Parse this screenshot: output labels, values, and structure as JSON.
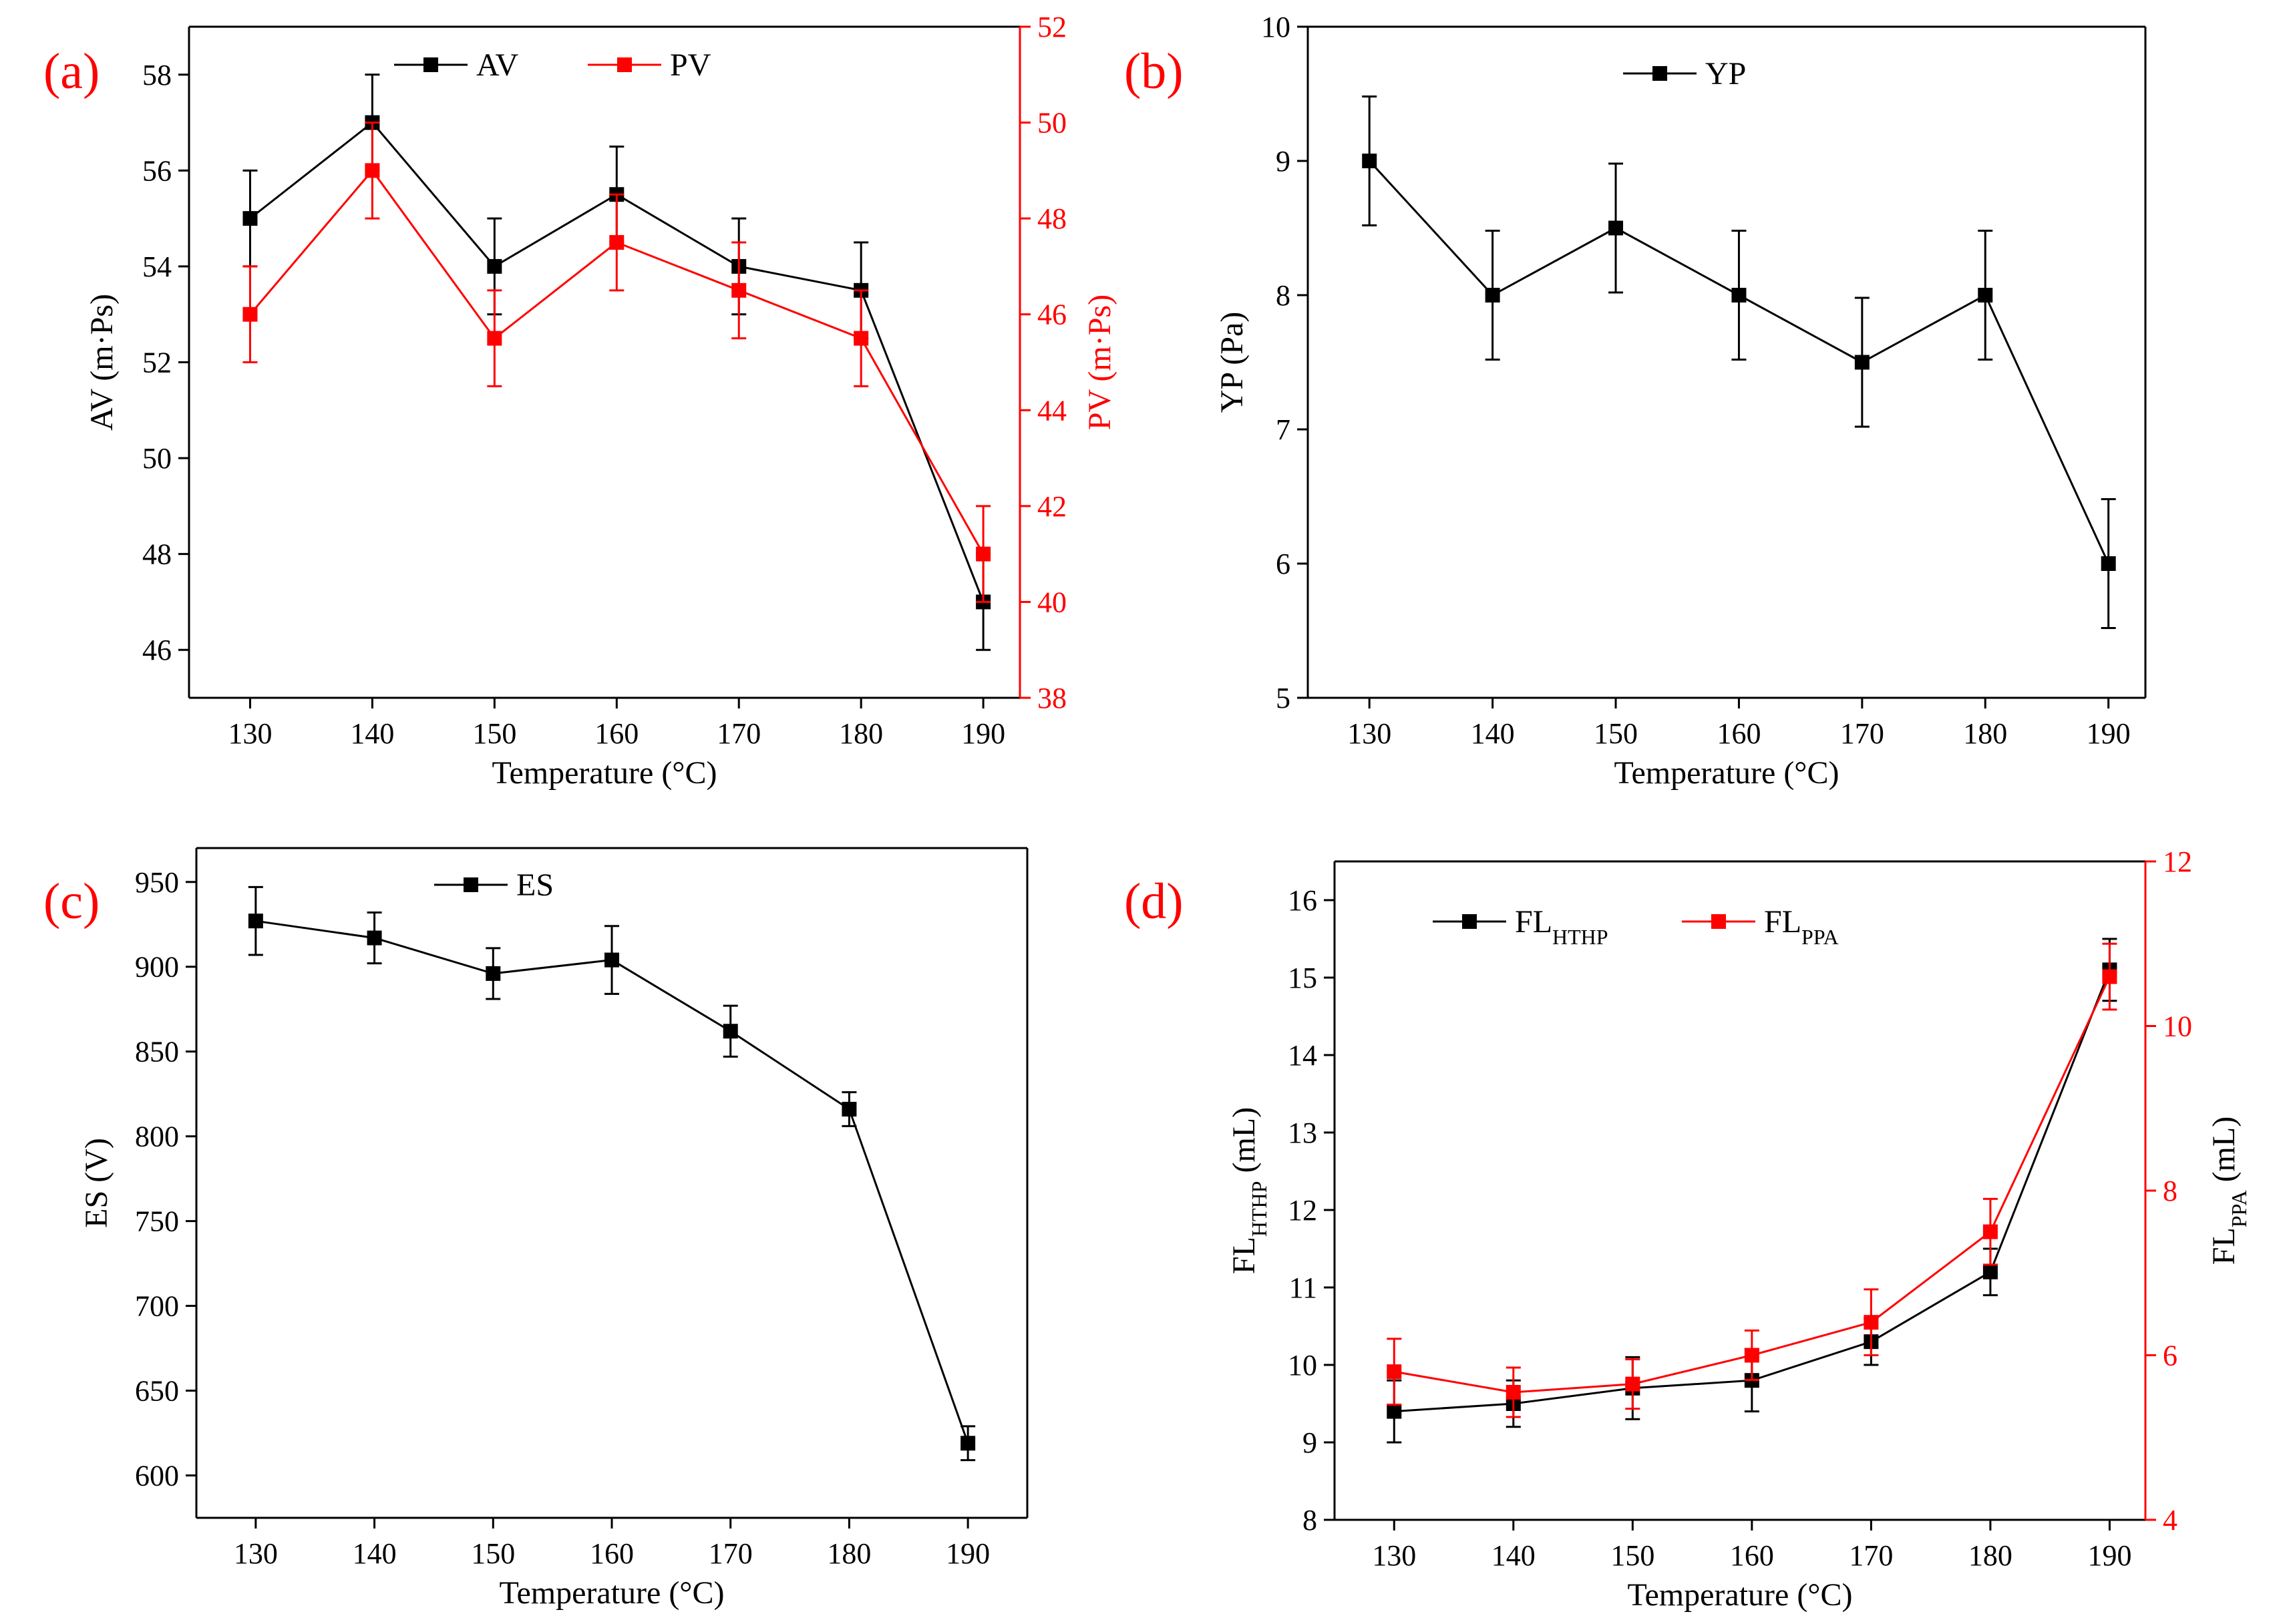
{
  "colors": {
    "black": "#000000",
    "red": "#ff0000"
  },
  "chart_data": [
    {
      "panel_label": "(a)",
      "type": "line",
      "x": [
        130,
        140,
        150,
        160,
        170,
        180,
        190
      ],
      "xlabel": "Temperature (°C)",
      "xticks": [
        130,
        140,
        150,
        160,
        170,
        180,
        190
      ],
      "xlim": [
        125,
        193
      ],
      "ylabel": "AV (m·Ps)",
      "ylim": [
        45,
        59
      ],
      "yticks": [
        46,
        48,
        50,
        52,
        54,
        56,
        58
      ],
      "y2label": "PV (m·Ps)",
      "y2lim": [
        38,
        52
      ],
      "y2ticks": [
        38,
        40,
        42,
        44,
        46,
        48,
        50,
        52
      ],
      "legend_position": "top",
      "series": [
        {
          "name": "AV",
          "axis": "left",
          "color": "#000000",
          "values": [
            55,
            57,
            54,
            55.5,
            54,
            53.5,
            47
          ],
          "errors": [
            1,
            1,
            1,
            1,
            1,
            1,
            1
          ]
        },
        {
          "name": "PV",
          "axis": "right",
          "color": "#ff0000",
          "values": [
            46,
            49,
            45.5,
            47.5,
            46.5,
            45.5,
            41
          ],
          "errors": [
            1,
            1,
            1,
            1,
            1,
            1,
            1
          ]
        }
      ]
    },
    {
      "panel_label": "(b)",
      "type": "line",
      "x": [
        130,
        140,
        150,
        160,
        170,
        180,
        190
      ],
      "xlabel": "Temperature (°C)",
      "xticks": [
        130,
        140,
        150,
        160,
        170,
        180,
        190
      ],
      "xlim": [
        125,
        193
      ],
      "ylabel": "YP (Pa)",
      "ylim": [
        5,
        10
      ],
      "yticks": [
        5,
        6,
        7,
        8,
        9,
        10
      ],
      "legend_position": "top",
      "series": [
        {
          "name": "YP",
          "axis": "left",
          "color": "#000000",
          "values": [
            9,
            8,
            8.5,
            8,
            7.5,
            8,
            6
          ],
          "errors": [
            0.48,
            0.48,
            0.48,
            0.48,
            0.48,
            0.48,
            0.48
          ]
        }
      ]
    },
    {
      "panel_label": "(c)",
      "type": "line",
      "x": [
        130,
        140,
        150,
        160,
        170,
        180,
        190
      ],
      "xlabel": "Temperature (°C)",
      "xticks": [
        130,
        140,
        150,
        160,
        170,
        180,
        190
      ],
      "xlim": [
        125,
        195
      ],
      "ylabel": "ES (V)",
      "ylim": [
        575,
        970
      ],
      "yticks": [
        600,
        650,
        700,
        750,
        800,
        850,
        900,
        950
      ],
      "legend_position": "top",
      "series": [
        {
          "name": "ES",
          "axis": "left",
          "color": "#000000",
          "values": [
            927,
            917,
            896,
            904,
            862,
            816,
            619
          ],
          "errors": [
            20,
            15,
            15,
            20,
            15,
            10,
            10
          ]
        }
      ]
    },
    {
      "panel_label": "(d)",
      "type": "line",
      "x": [
        130,
        140,
        150,
        160,
        170,
        180,
        190
      ],
      "xlabel": "Temperature (°C)",
      "xticks": [
        130,
        140,
        150,
        160,
        170,
        180,
        190
      ],
      "xlim": [
        125,
        193
      ],
      "ylabel": "FL",
      "ylabel_sub": "HTHP",
      "ylabel_suffix": " (mL)",
      "ylim": [
        8,
        16.5
      ],
      "yticks": [
        8,
        9,
        10,
        11,
        12,
        13,
        14,
        15,
        16
      ],
      "y2label": "FL",
      "y2label_sub": "PPA",
      "y2label_suffix": " (mL)",
      "y2lim": [
        4,
        12
      ],
      "y2ticks": [
        4,
        6,
        8,
        10,
        12
      ],
      "legend_position": "top",
      "series": [
        {
          "name": "FL",
          "name_sub": "HTHP",
          "axis": "left",
          "color": "#000000",
          "values": [
            9.4,
            9.5,
            9.7,
            9.8,
            10.3,
            11.2,
            15.1
          ],
          "errors": [
            0.4,
            0.3,
            0.4,
            0.4,
            0.3,
            0.3,
            0.4
          ]
        },
        {
          "name": "FL",
          "name_sub": "PPA",
          "axis": "right",
          "color": "#ff0000",
          "values": [
            5.8,
            5.55,
            5.65,
            6.0,
            6.4,
            7.5,
            10.6
          ],
          "errors": [
            0.4,
            0.3,
            0.3,
            0.3,
            0.4,
            0.4,
            0.4
          ]
        }
      ]
    }
  ]
}
